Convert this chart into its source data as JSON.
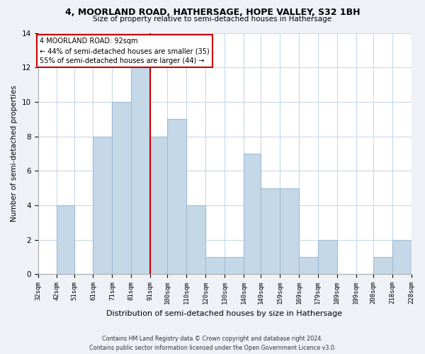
{
  "title": "4, MOORLAND ROAD, HATHERSAGE, HOPE VALLEY, S32 1BH",
  "subtitle": "Size of property relative to semi-detached houses in Hathersage",
  "xlabel": "Distribution of semi-detached houses by size in Hathersage",
  "ylabel": "Number of semi-detached properties",
  "bar_edges": [
    32,
    42,
    51,
    61,
    71,
    81,
    91,
    100,
    110,
    120,
    130,
    140,
    149,
    159,
    169,
    179,
    189,
    199,
    208,
    218,
    228
  ],
  "bar_heights": [
    0,
    4,
    0,
    8,
    10,
    12,
    8,
    9,
    4,
    1,
    1,
    7,
    5,
    5,
    1,
    2,
    0,
    0,
    1,
    2
  ],
  "bar_color": "#c5d8e8",
  "bar_edgecolor": "#a0bcd4",
  "vline_x": 91,
  "vline_color": "#cc0000",
  "annotation_title": "4 MOORLAND ROAD: 92sqm",
  "annotation_line1": "← 44% of semi-detached houses are smaller (35)",
  "annotation_line2": "55% of semi-detached houses are larger (44) →",
  "annotation_box_color": "#ffffff",
  "annotation_box_edgecolor": "#cc0000",
  "tick_labels": [
    "32sqm",
    "42sqm",
    "51sqm",
    "61sqm",
    "71sqm",
    "81sqm",
    "91sqm",
    "100sqm",
    "110sqm",
    "120sqm",
    "130sqm",
    "140sqm",
    "149sqm",
    "159sqm",
    "169sqm",
    "179sqm",
    "189sqm",
    "199sqm",
    "208sqm",
    "218sqm",
    "228sqm"
  ],
  "ylim": [
    0,
    14
  ],
  "yticks": [
    0,
    2,
    4,
    6,
    8,
    10,
    12,
    14
  ],
  "footer_line1": "Contains HM Land Registry data © Crown copyright and database right 2024.",
  "footer_line2": "Contains public sector information licensed under the Open Government Licence v3.0.",
  "background_color": "#eef2f7",
  "plot_background": "#ffffff",
  "grid_color": "#c8d8e8"
}
